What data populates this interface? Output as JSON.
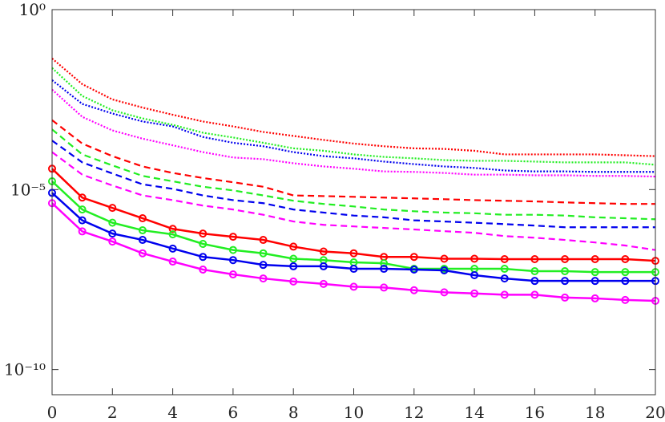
{
  "chart_data": {
    "type": "line",
    "y_scale": "log",
    "x": [
      0,
      1,
      2,
      3,
      4,
      5,
      6,
      7,
      8,
      9,
      10,
      11,
      12,
      13,
      14,
      15,
      16,
      17,
      18,
      19,
      20
    ],
    "xlim": [
      0,
      20
    ],
    "xticks": [
      0,
      2,
      4,
      6,
      8,
      10,
      12,
      14,
      16,
      18,
      20
    ],
    "ylim": [
      2e-11,
      1
    ],
    "yticks": [
      {
        "value": 1,
        "label": "10⁰"
      },
      {
        "value": 1e-05,
        "label": "10⁻⁵"
      },
      {
        "value": 1e-10,
        "label": "10⁻¹⁰"
      }
    ],
    "grid": false,
    "series": [
      {
        "color": "#ff0000",
        "style": "solid",
        "marker": "circle",
        "values": [
          3.8e-05,
          6e-06,
          3.1e-06,
          1.6e-06,
          8.1e-07,
          6e-07,
          4.9e-07,
          4e-07,
          2.6e-07,
          1.9e-07,
          1.7e-07,
          1.35e-07,
          1.35e-07,
          1.2e-07,
          1.2e-07,
          1.17e-07,
          1.17e-07,
          1.17e-07,
          1.17e-07,
          1.17e-07,
          1.05e-07
        ]
      },
      {
        "color": "#22ee22",
        "style": "solid",
        "marker": "circle",
        "values": [
          1.7e-05,
          2.8e-06,
          1.2e-06,
          7.4e-07,
          5.7e-07,
          3.1e-07,
          2.1e-07,
          1.7e-07,
          1.2e-07,
          1.1e-07,
          9.5e-08,
          9e-08,
          6.3e-08,
          6.3e-08,
          6.3e-08,
          6.3e-08,
          5.4e-08,
          5.4e-08,
          5.1e-08,
          5.1e-08,
          5.1e-08
        ]
      },
      {
        "color": "#0000ee",
        "style": "solid",
        "marker": "circle",
        "values": [
          8.1e-06,
          1.4e-06,
          6e-07,
          4e-07,
          2.3e-07,
          1.35e-07,
          1.1e-07,
          8.1e-08,
          7.4e-08,
          7.4e-08,
          6.3e-08,
          6.3e-08,
          6e-08,
          5.7e-08,
          4.2e-08,
          3.4e-08,
          2.9e-08,
          2.9e-08,
          2.9e-08,
          2.9e-08,
          2.9e-08
        ]
      },
      {
        "color": "#ff00ff",
        "style": "solid",
        "marker": "circle",
        "values": [
          4.2e-06,
          6.9e-07,
          3.6e-07,
          1.7e-07,
          1e-07,
          6e-08,
          4.4e-08,
          3.4e-08,
          2.8e-08,
          2.4e-08,
          2e-08,
          1.9e-08,
          1.6e-08,
          1.4e-08,
          1.3e-08,
          1.2e-08,
          1.2e-08,
          1e-08,
          9.5e-09,
          8.6e-09,
          8.1e-09
        ]
      },
      {
        "color": "#ff0000",
        "style": "dashed",
        "values": [
          0.00085,
          0.00019,
          8.5e-05,
          4.4e-05,
          2.9e-05,
          2.1e-05,
          1.6e-05,
          1.2e-05,
          6.9e-06,
          6.6e-06,
          6.3e-06,
          6e-06,
          5.7e-06,
          5.4e-06,
          5.1e-06,
          4.9e-06,
          4.7e-06,
          4.4e-06,
          4.2e-06,
          4e-06,
          4e-06
        ]
      },
      {
        "color": "#22ee22",
        "style": "dashed",
        "values": [
          0.00047,
          9.5e-05,
          4.7e-05,
          2.4e-05,
          1.7e-05,
          1.2e-05,
          9.5e-06,
          6.9e-06,
          4.9e-06,
          4e-06,
          3.4e-06,
          2.8e-06,
          2.5e-06,
          2.3e-06,
          2.2e-06,
          2e-06,
          2e-06,
          1.9e-06,
          1.7e-06,
          1.6e-06,
          1.5e-06
        ]
      },
      {
        "color": "#0000ee",
        "style": "dashed",
        "values": [
          0.00023,
          5.7e-05,
          2.8e-05,
          1.4e-05,
          1.05e-05,
          6.9e-06,
          5.1e-06,
          4.2e-06,
          2.8e-06,
          2.3e-06,
          1.9e-06,
          1.7e-06,
          1.4e-06,
          1.3e-06,
          1.2e-06,
          1.1e-06,
          1e-06,
          9e-07,
          9e-07,
          9e-07,
          9e-07
        ]
      },
      {
        "color": "#ff00ff",
        "style": "dashed",
        "values": [
          0.00011,
          2.6e-05,
          1.3e-05,
          6.9e-06,
          5.1e-06,
          3.6e-06,
          2.8e-06,
          2e-06,
          1.3e-06,
          1.05e-06,
          9.5e-07,
          8.6e-07,
          7.8e-07,
          7e-07,
          6.3e-07,
          5.1e-07,
          4.6e-07,
          4e-07,
          3.4e-07,
          2.8e-07,
          2.1e-07
        ]
      },
      {
        "color": "#ff0000",
        "style": "dotted",
        "values": [
          0.044,
          0.0085,
          0.0032,
          0.0019,
          0.0012,
          0.00078,
          0.00057,
          0.0004,
          0.00031,
          0.00024,
          0.00019,
          0.00016,
          0.00014,
          0.000135,
          0.00012,
          9.5e-05,
          9.5e-05,
          9.5e-05,
          9.5e-05,
          9e-05,
          8.5e-05
        ]
      },
      {
        "color": "#22ee22",
        "style": "dotted",
        "values": [
          0.024,
          0.004,
          0.0016,
          0.00095,
          0.00063,
          0.00038,
          0.00028,
          0.0002,
          0.00014,
          0.00012,
          9.5e-05,
          8.1e-05,
          7.4e-05,
          6.6e-05,
          6.3e-05,
          6.3e-05,
          6e-05,
          5.7e-05,
          5.7e-05,
          5.7e-05,
          4.9e-05
        ]
      },
      {
        "color": "#0000ee",
        "style": "dotted",
        "values": [
          0.011,
          0.0024,
          0.0013,
          0.00078,
          0.00057,
          0.00029,
          0.0002,
          0.00016,
          0.00011,
          8.5e-05,
          7.4e-05,
          6e-05,
          5.1e-05,
          4.4e-05,
          4e-05,
          3.4e-05,
          3.2e-05,
          3.2e-05,
          3.1e-05,
          3.1e-05,
          3.1e-05
        ]
      },
      {
        "color": "#ff00ff",
        "style": "dotted",
        "values": [
          0.006,
          0.00105,
          0.00044,
          0.00026,
          0.00017,
          0.00011,
          7.8e-05,
          7e-05,
          5.4e-05,
          4.4e-05,
          3.8e-05,
          3.2e-05,
          3.1e-05,
          2.9e-05,
          2.6e-05,
          2.6e-05,
          2.5e-05,
          2.5e-05,
          2.4e-05,
          2.4e-05,
          2.3e-05
        ]
      }
    ]
  }
}
